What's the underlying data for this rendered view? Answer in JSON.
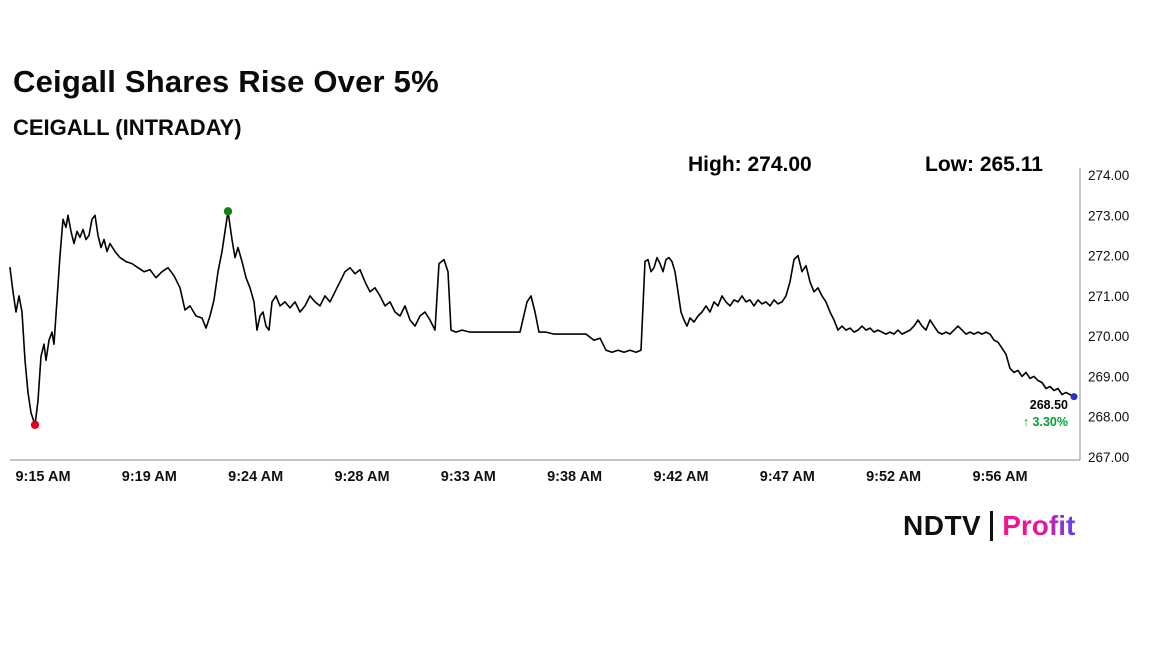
{
  "title": "Ceigall Shares Rise Over 5%",
  "subtitle": "CEIGALL (INTRADAY)",
  "header": {
    "high": "High: 274.00",
    "low": "Low: 265.11"
  },
  "callout": {
    "price": "268.50",
    "change": "↑ 3.30%"
  },
  "brand": {
    "name": "NDTV",
    "product": "Profit"
  },
  "colors": {
    "line": "#000000",
    "axis": "#8a8a8a",
    "low_dot": "#e3001b",
    "high_dot": "#15800f",
    "last_dot": "#2532c3",
    "change_green": "#00a234",
    "text": "#111111"
  },
  "chart_data": {
    "type": "line",
    "title": "CEIGALL (INTRADAY)",
    "xlabel": "",
    "ylabel": "",
    "high": 274.0,
    "low": 265.11,
    "last": 268.5,
    "change_pct": 3.3,
    "ylim": [
      267,
      274
    ],
    "grid": false,
    "legend": "none",
    "y_ticks": [
      "274.00",
      "273.00",
      "272.00",
      "271.00",
      "270.00",
      "269.00",
      "268.00",
      "267.00"
    ],
    "x_ticks": [
      "9:15 AM",
      "9:19 AM",
      "9:24 AM",
      "9:28 AM",
      "9:33 AM",
      "9:38 AM",
      "9:42 AM",
      "9:47 AM",
      "9:52 AM",
      "9:56 AM"
    ],
    "series": [
      {
        "name": "CEIGALL",
        "x_unit": "px",
        "y_unit": "INR",
        "points": [
          [
            10,
            271.7
          ],
          [
            13,
            271.1
          ],
          [
            16,
            270.6
          ],
          [
            19,
            271.0
          ],
          [
            22,
            270.6
          ],
          [
            25,
            269.4
          ],
          [
            28,
            268.6
          ],
          [
            31,
            268.1
          ],
          [
            35,
            267.8
          ],
          [
            38,
            268.4
          ],
          [
            41,
            269.5
          ],
          [
            44,
            269.8
          ],
          [
            46,
            269.4
          ],
          [
            49,
            269.9
          ],
          [
            52,
            270.1
          ],
          [
            54,
            269.8
          ],
          [
            57,
            270.9
          ],
          [
            60,
            272.0
          ],
          [
            63,
            272.9
          ],
          [
            66,
            272.7
          ],
          [
            68,
            273.0
          ],
          [
            71,
            272.6
          ],
          [
            74,
            272.3
          ],
          [
            77,
            272.6
          ],
          [
            80,
            272.45
          ],
          [
            83,
            272.65
          ],
          [
            86,
            272.4
          ],
          [
            89,
            272.5
          ],
          [
            92,
            272.9
          ],
          [
            95,
            273.0
          ],
          [
            98,
            272.5
          ],
          [
            101,
            272.2
          ],
          [
            104,
            272.4
          ],
          [
            107,
            272.1
          ],
          [
            110,
            272.3
          ],
          [
            115,
            272.1
          ],
          [
            120,
            271.95
          ],
          [
            126,
            271.85
          ],
          [
            132,
            271.8
          ],
          [
            138,
            271.7
          ],
          [
            144,
            271.6
          ],
          [
            150,
            271.65
          ],
          [
            156,
            271.45
          ],
          [
            162,
            271.6
          ],
          [
            168,
            271.7
          ],
          [
            174,
            271.5
          ],
          [
            180,
            271.2
          ],
          [
            185,
            270.65
          ],
          [
            190,
            270.75
          ],
          [
            196,
            270.5
          ],
          [
            202,
            270.45
          ],
          [
            206,
            270.2
          ],
          [
            210,
            270.5
          ],
          [
            214,
            270.9
          ],
          [
            218,
            271.6
          ],
          [
            222,
            272.1
          ],
          [
            225,
            272.6
          ],
          [
            228,
            273.1
          ],
          [
            232,
            272.4
          ],
          [
            235,
            271.95
          ],
          [
            238,
            272.2
          ],
          [
            242,
            271.85
          ],
          [
            246,
            271.45
          ],
          [
            250,
            271.2
          ],
          [
            254,
            270.85
          ],
          [
            257,
            270.15
          ],
          [
            260,
            270.5
          ],
          [
            263,
            270.6
          ],
          [
            266,
            270.25
          ],
          [
            269,
            270.15
          ],
          [
            272,
            270.85
          ],
          [
            276,
            271.0
          ],
          [
            280,
            270.75
          ],
          [
            285,
            270.85
          ],
          [
            290,
            270.7
          ],
          [
            295,
            270.85
          ],
          [
            300,
            270.6
          ],
          [
            305,
            270.75
          ],
          [
            310,
            271.0
          ],
          [
            315,
            270.85
          ],
          [
            320,
            270.75
          ],
          [
            325,
            271.0
          ],
          [
            330,
            270.85
          ],
          [
            335,
            271.1
          ],
          [
            340,
            271.35
          ],
          [
            345,
            271.6
          ],
          [
            350,
            271.7
          ],
          [
            355,
            271.55
          ],
          [
            360,
            271.65
          ],
          [
            365,
            271.35
          ],
          [
            370,
            271.1
          ],
          [
            375,
            271.2
          ],
          [
            380,
            271.0
          ],
          [
            385,
            270.75
          ],
          [
            390,
            270.85
          ],
          [
            395,
            270.6
          ],
          [
            400,
            270.5
          ],
          [
            405,
            270.75
          ],
          [
            410,
            270.4
          ],
          [
            415,
            270.25
          ],
          [
            420,
            270.5
          ],
          [
            425,
            270.6
          ],
          [
            430,
            270.4
          ],
          [
            435,
            270.15
          ],
          [
            439,
            271.8
          ],
          [
            444,
            271.9
          ],
          [
            448,
            271.6
          ],
          [
            451,
            270.15
          ],
          [
            456,
            270.1
          ],
          [
            462,
            270.15
          ],
          [
            470,
            270.1
          ],
          [
            480,
            270.1
          ],
          [
            490,
            270.1
          ],
          [
            500,
            270.1
          ],
          [
            510,
            270.1
          ],
          [
            520,
            270.1
          ],
          [
            527,
            270.85
          ],
          [
            531,
            271.0
          ],
          [
            535,
            270.6
          ],
          [
            539,
            270.1
          ],
          [
            546,
            270.1
          ],
          [
            554,
            270.05
          ],
          [
            562,
            270.05
          ],
          [
            570,
            270.05
          ],
          [
            578,
            270.05
          ],
          [
            586,
            270.05
          ],
          [
            594,
            269.9
          ],
          [
            600,
            269.95
          ],
          [
            606,
            269.65
          ],
          [
            612,
            269.6
          ],
          [
            618,
            269.65
          ],
          [
            624,
            269.6
          ],
          [
            630,
            269.65
          ],
          [
            636,
            269.6
          ],
          [
            641,
            269.65
          ],
          [
            645,
            271.85
          ],
          [
            648,
            271.9
          ],
          [
            651,
            271.6
          ],
          [
            654,
            271.7
          ],
          [
            657,
            271.95
          ],
          [
            660,
            271.8
          ],
          [
            663,
            271.6
          ],
          [
            666,
            271.9
          ],
          [
            669,
            271.95
          ],
          [
            672,
            271.85
          ],
          [
            675,
            271.6
          ],
          [
            678,
            271.1
          ],
          [
            681,
            270.6
          ],
          [
            684,
            270.4
          ],
          [
            687,
            270.25
          ],
          [
            690,
            270.45
          ],
          [
            694,
            270.35
          ],
          [
            698,
            270.5
          ],
          [
            702,
            270.6
          ],
          [
            706,
            270.75
          ],
          [
            710,
            270.6
          ],
          [
            714,
            270.85
          ],
          [
            718,
            270.75
          ],
          [
            722,
            271.0
          ],
          [
            726,
            270.85
          ],
          [
            730,
            270.75
          ],
          [
            734,
            270.9
          ],
          [
            738,
            270.85
          ],
          [
            742,
            271.0
          ],
          [
            746,
            270.85
          ],
          [
            750,
            270.9
          ],
          [
            754,
            270.75
          ],
          [
            758,
            270.9
          ],
          [
            762,
            270.8
          ],
          [
            766,
            270.85
          ],
          [
            770,
            270.75
          ],
          [
            774,
            270.9
          ],
          [
            778,
            270.8
          ],
          [
            782,
            270.85
          ],
          [
            786,
            271.0
          ],
          [
            790,
            271.35
          ],
          [
            794,
            271.9
          ],
          [
            798,
            272.0
          ],
          [
            802,
            271.6
          ],
          [
            806,
            271.75
          ],
          [
            810,
            271.35
          ],
          [
            814,
            271.1
          ],
          [
            818,
            271.2
          ],
          [
            822,
            271.0
          ],
          [
            826,
            270.85
          ],
          [
            830,
            270.6
          ],
          [
            834,
            270.4
          ],
          [
            838,
            270.15
          ],
          [
            842,
            270.25
          ],
          [
            846,
            270.15
          ],
          [
            850,
            270.2
          ],
          [
            854,
            270.1
          ],
          [
            858,
            270.15
          ],
          [
            862,
            270.25
          ],
          [
            866,
            270.15
          ],
          [
            870,
            270.2
          ],
          [
            874,
            270.1
          ],
          [
            878,
            270.15
          ],
          [
            882,
            270.1
          ],
          [
            886,
            270.05
          ],
          [
            890,
            270.1
          ],
          [
            894,
            270.05
          ],
          [
            898,
            270.15
          ],
          [
            902,
            270.05
          ],
          [
            906,
            270.1
          ],
          [
            910,
            270.15
          ],
          [
            914,
            270.25
          ],
          [
            918,
            270.4
          ],
          [
            922,
            270.25
          ],
          [
            926,
            270.15
          ],
          [
            930,
            270.4
          ],
          [
            934,
            270.25
          ],
          [
            938,
            270.1
          ],
          [
            942,
            270.05
          ],
          [
            946,
            270.1
          ],
          [
            950,
            270.05
          ],
          [
            954,
            270.15
          ],
          [
            958,
            270.25
          ],
          [
            962,
            270.15
          ],
          [
            966,
            270.05
          ],
          [
            970,
            270.1
          ],
          [
            974,
            270.05
          ],
          [
            978,
            270.1
          ],
          [
            982,
            270.05
          ],
          [
            986,
            270.1
          ],
          [
            990,
            270.05
          ],
          [
            994,
            269.9
          ],
          [
            998,
            269.85
          ],
          [
            1002,
            269.7
          ],
          [
            1006,
            269.55
          ],
          [
            1010,
            269.2
          ],
          [
            1014,
            269.1
          ],
          [
            1018,
            269.15
          ],
          [
            1022,
            269.0
          ],
          [
            1026,
            269.1
          ],
          [
            1030,
            268.95
          ],
          [
            1034,
            269.0
          ],
          [
            1038,
            268.9
          ],
          [
            1042,
            268.85
          ],
          [
            1046,
            268.7
          ],
          [
            1050,
            268.75
          ],
          [
            1054,
            268.65
          ],
          [
            1058,
            268.7
          ],
          [
            1062,
            268.55
          ],
          [
            1066,
            268.6
          ],
          [
            1070,
            268.55
          ],
          [
            1074,
            268.5
          ]
        ]
      }
    ],
    "markers": [
      {
        "at": "min",
        "color": "#e3001b"
      },
      {
        "at": "max",
        "color": "#15800f"
      },
      {
        "at": "last",
        "color": "#2532c3"
      }
    ]
  }
}
